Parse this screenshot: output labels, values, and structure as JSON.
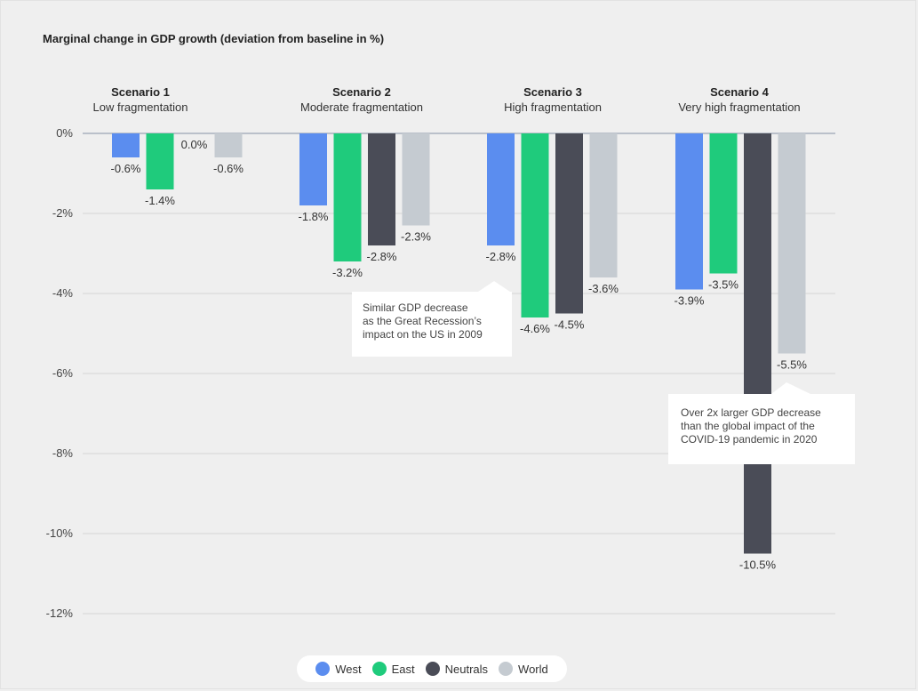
{
  "chart_data": {
    "type": "bar",
    "title": "Marginal change in GDP growth (deviation from baseline in %)",
    "categories": [
      {
        "name": "Scenario 1",
        "description": "Low fragmentation"
      },
      {
        "name": "Scenario 2",
        "description": "Moderate fragmentation"
      },
      {
        "name": "Scenario 3",
        "description": "High fragmentation"
      },
      {
        "name": "Scenario 4",
        "description": "Very high fragmentation"
      }
    ],
    "series": [
      {
        "name": "West",
        "color": "#5b8def",
        "values": [
          -0.6,
          -1.8,
          -2.8,
          -3.9
        ],
        "labels": [
          "-0.6%",
          "-1.8%",
          "-2.8%",
          "-3.9%"
        ]
      },
      {
        "name": "East",
        "color": "#1fcb7c",
        "values": [
          -1.4,
          -3.2,
          -4.6,
          -3.5
        ],
        "labels": [
          "-1.4%",
          "-3.2%",
          "-4.6%",
          "-3.5%"
        ]
      },
      {
        "name": "Neutrals",
        "color": "#4a4c57",
        "values": [
          0.0,
          -2.8,
          -4.5,
          -10.5
        ],
        "labels": [
          "0.0%",
          "-2.8%",
          "-4.5%",
          "-10.5%"
        ]
      },
      {
        "name": "World",
        "color": "#c5cbd1",
        "values": [
          -0.6,
          -2.3,
          -3.6,
          -5.5
        ],
        "labels": [
          "-0.6%",
          "-2.3%",
          "-3.6%",
          "-5.5%"
        ]
      }
    ],
    "yticks": [
      0,
      -2,
      -4,
      -6,
      -8,
      -10,
      -12
    ],
    "ytick_labels": [
      "0%",
      "-2%",
      "-4%",
      "-6%",
      "-8%",
      "-10%",
      "-12%"
    ],
    "ylim": [
      -12,
      0
    ],
    "grid": true,
    "legend_position": "bottom-center",
    "annotations": [
      {
        "text": "Similar GDP decrease as the Great Recession's impact on the US in 2009"
      },
      {
        "text": "Over 2x larger GDP decrease than the global impact of the COVID-19 pandemic in 2020"
      }
    ]
  },
  "annotation_lines": {
    "a1": [
      "Similar GDP decrease",
      "as the Great Recession’s",
      "impact on the US in 2009"
    ],
    "a2": [
      "Over 2x larger GDP decrease",
      "than the global impact of the",
      "COVID-19 pandemic in 2020"
    ]
  }
}
